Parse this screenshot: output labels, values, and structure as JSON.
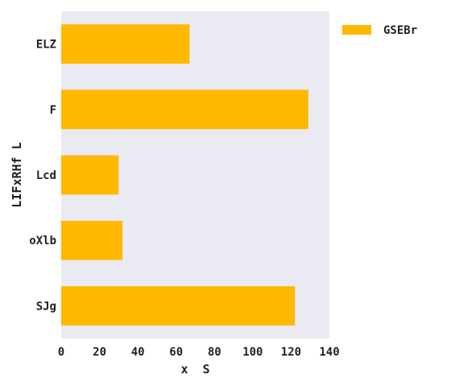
{
  "chart_data": {
    "type": "bar",
    "orientation": "horizontal",
    "categories": [
      "ELZ",
      "F",
      "Lcd",
      "oXlb",
      "SJg"
    ],
    "series": [
      {
        "name": "GSEBr",
        "values": [
          67,
          129,
          30,
          32,
          122
        ],
        "color": "#FFB800"
      }
    ],
    "xlabel": "x  S",
    "ylabel": "LIFxRHf L",
    "xlim": [
      0,
      140
    ],
    "xticks": [
      0,
      20,
      40,
      60,
      80,
      100,
      120,
      140
    ],
    "grid": false,
    "legend_position": "top-right",
    "plot_background": "#EAEAF2"
  }
}
